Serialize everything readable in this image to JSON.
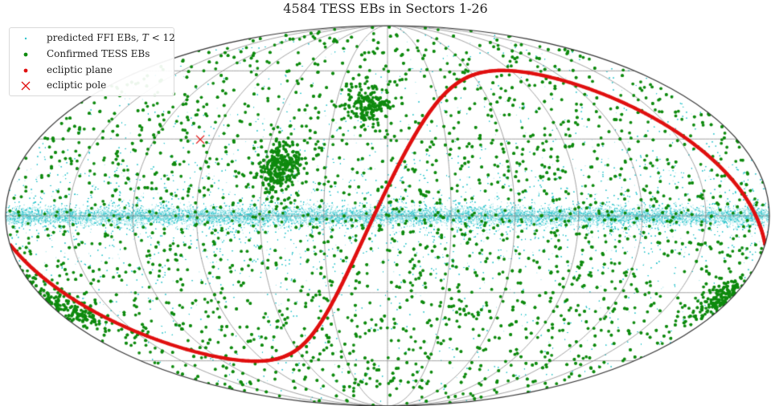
{
  "chart_data": {
    "type": "scatter",
    "projection": "mollweide",
    "title": "4584 TESS EBs in Sectors 1-26",
    "grid": true,
    "legend_position": "top-left",
    "colors": {
      "predicted": "#2ec4cc",
      "confirmed": "#0e8a0e",
      "ecliptic": "#e01010",
      "pole": "#e01010",
      "grid": "#8a8a8a"
    },
    "legend": [
      {
        "label_prefix": "predicted FFI EBs,",
        "label_math": "T",
        "label_suffix": "< 12",
        "marker": "small-dot",
        "color": "#2ec4cc"
      },
      {
        "label": "Confirmed TESS EBs",
        "marker": "dot",
        "color": "#0e8a0e"
      },
      {
        "label": "ecliptic plane",
        "marker": "dot",
        "color": "#e01010"
      },
      {
        "label": "ecliptic pole",
        "marker": "x",
        "color": "#e01010"
      }
    ],
    "series": [
      {
        "name": "predicted FFI EBs, T < 12",
        "kind": "density",
        "concentration": "galactic plane"
      },
      {
        "name": "Confirmed TESS EBs",
        "count": 4584
      },
      {
        "name": "ecliptic plane",
        "curve": "ecliptic"
      },
      {
        "name": "ecliptic pole",
        "lon": 96.38,
        "lat": 29.81
      }
    ],
    "clusters": [
      {
        "lon": 52,
        "lat": 18,
        "weight": 0.08
      },
      {
        "lon": -175,
        "lat": -32,
        "weight": 0.07
      },
      {
        "lon": 170,
        "lat": -38,
        "weight": 0.04
      },
      {
        "lon": 12,
        "lat": 45,
        "weight": 0.05
      }
    ]
  }
}
